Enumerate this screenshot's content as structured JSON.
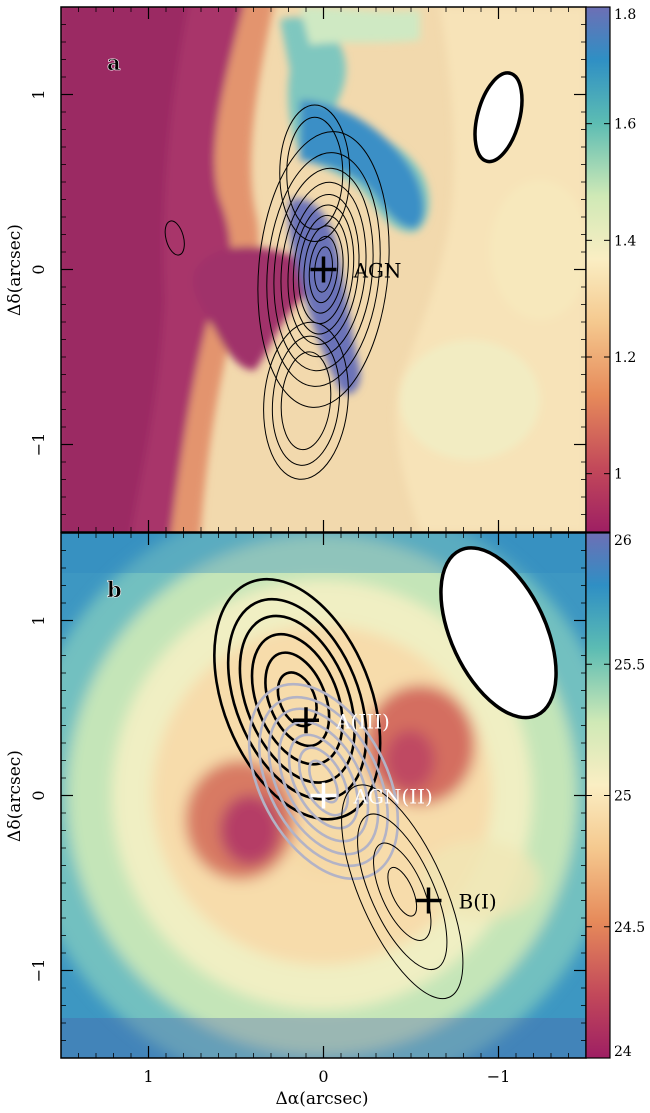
{
  "chart_data": [
    {
      "type": "heatmap",
      "panel_label": "a",
      "xlabel": "",
      "ylabel": "Δδ(arcsec)",
      "xlim": [
        1.5,
        -1.5
      ],
      "ylim": [
        -1.5,
        1.5
      ],
      "yticks": [
        {
          "v": 1,
          "label": "1"
        },
        {
          "v": 0,
          "label": "0"
        },
        {
          "v": -1,
          "label": "−1"
        }
      ],
      "colorbar": {
        "range": [
          0.9,
          1.8
        ],
        "ticks": [
          {
            "v": 1.8,
            "label": "1.8"
          },
          {
            "v": 1.6,
            "label": "1.6"
          },
          {
            "v": 1.4,
            "label": "1.4"
          },
          {
            "v": 1.2,
            "label": "1.2"
          },
          {
            "v": 1.0,
            "label": "1"
          }
        ]
      },
      "markers": [
        {
          "x": 0.0,
          "y": 0.0,
          "label": "AGN",
          "color": "#000000",
          "label_color": "#000000"
        }
      ],
      "contours": [
        {
          "cx": 0.0,
          "cy": 0.0,
          "ang": 5,
          "levels": [
            [
              0.05,
              0.13
            ],
            [
              0.08,
              0.19
            ],
            [
              0.11,
              0.25
            ],
            [
              0.14,
              0.31
            ],
            [
              0.17,
              0.37
            ],
            [
              0.2,
              0.43
            ],
            [
              0.24,
              0.5
            ],
            [
              0.28,
              0.58
            ],
            [
              0.32,
              0.67
            ],
            [
              0.37,
              0.79
            ]
          ],
          "color": "#000000",
          "stroke": 1.0
        },
        {
          "cx": 0.05,
          "cy": 0.55,
          "ang": 0,
          "levels": [
            [
              0.16,
              0.32
            ],
            [
              0.2,
              0.39
            ]
          ],
          "color": "#000000",
          "stroke": 1.0
        },
        {
          "cx": 0.1,
          "cy": -0.75,
          "ang": 5,
          "levels": [
            [
              0.14,
              0.28
            ],
            [
              0.19,
              0.37
            ],
            [
              0.24,
              0.45
            ]
          ],
          "color": "#000000",
          "stroke": 1.0
        },
        {
          "cx": 0.85,
          "cy": 0.18,
          "ang": -15,
          "levels": [
            [
              0.05,
              0.1
            ]
          ],
          "color": "#000000",
          "stroke": 1.0
        }
      ],
      "beam": {
        "cx": -1.0,
        "cy": 0.87,
        "rx": 0.12,
        "ry": 0.26,
        "ang": 15
      }
    },
    {
      "type": "heatmap",
      "panel_label": "b",
      "xlabel": "Δα(arcsec)",
      "ylabel": "Δδ(arcsec)",
      "xlim": [
        1.5,
        -1.5
      ],
      "ylim": [
        -1.5,
        1.5
      ],
      "xticks": [
        {
          "v": 1,
          "label": "1"
        },
        {
          "v": 0,
          "label": "0"
        },
        {
          "v": -1,
          "label": "−1"
        }
      ],
      "yticks": [
        {
          "v": 1,
          "label": "1"
        },
        {
          "v": 0,
          "label": "0"
        },
        {
          "v": -1,
          "label": "−1"
        }
      ],
      "colorbar": {
        "range": [
          24,
          26
        ],
        "ticks": [
          {
            "v": 26,
            "label": "26"
          },
          {
            "v": 25.5,
            "label": "25.5"
          },
          {
            "v": 25,
            "label": "25"
          },
          {
            "v": 24.5,
            "label": "24.5"
          },
          {
            "v": 24,
            "label": "24"
          }
        ]
      },
      "markers": [
        {
          "x": 0.1,
          "y": 0.43,
          "label": "A(III)",
          "color": "#000000",
          "label_color": "#ffffff"
        },
        {
          "x": 0.0,
          "y": 0.0,
          "label": "AGN(II)",
          "color": "#ffffff",
          "label_color": "#ffffff"
        },
        {
          "x": -0.6,
          "y": -0.6,
          "label": "B(I)",
          "color": "#000000",
          "label_color": "#000000"
        }
      ],
      "contours": [
        {
          "cx": 0.15,
          "cy": 0.55,
          "ang": -22,
          "levels": [
            [
              0.1,
              0.16
            ],
            [
              0.16,
              0.28
            ],
            [
              0.23,
              0.39
            ],
            [
              0.29,
              0.5
            ],
            [
              0.35,
              0.6
            ],
            [
              0.42,
              0.72
            ]
          ],
          "color": "#000000",
          "stroke": 2.6
        },
        {
          "cx": 0.0,
          "cy": 0.08,
          "ang": -28,
          "levels": [
            [
              0.06,
              0.13
            ],
            [
              0.11,
              0.21
            ],
            [
              0.16,
              0.29
            ],
            [
              0.21,
              0.37
            ],
            [
              0.26,
              0.45
            ],
            [
              0.31,
              0.52
            ],
            [
              0.36,
              0.6
            ]
          ],
          "color": "#b3b3c6",
          "stroke": 2.6
        },
        {
          "cx": -0.45,
          "cy": -0.55,
          "ang": -24,
          "levels": [
            [
              0.06,
              0.15
            ],
            [
              0.12,
              0.3
            ],
            [
              0.18,
              0.48
            ],
            [
              0.24,
              0.66
            ]
          ],
          "color": "#000000",
          "stroke": 1.0
        }
      ],
      "beam": {
        "cx": -1.0,
        "cy": 0.93,
        "rx": 0.27,
        "ry": 0.52,
        "ang": -25
      }
    }
  ]
}
